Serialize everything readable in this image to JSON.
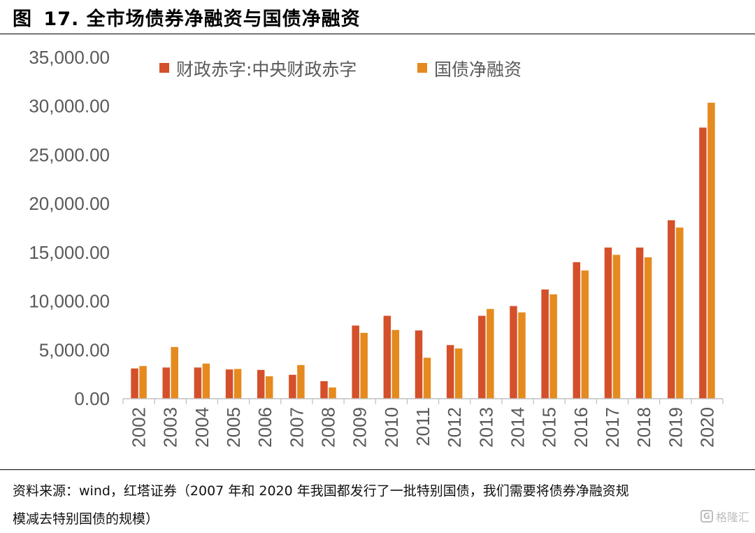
{
  "header": {
    "figure_label": "图",
    "figure_number": "17.",
    "title": "全市场债券净融资与国债净融资"
  },
  "footer": {
    "source_line1": "资料来源：wind，红塔证券（2007 年和 2020 年我国都发行了一批特别国债，我们需要将债券净融资规",
    "source_line2": "模减去特别国债的规模）"
  },
  "watermark": {
    "text": "格隆汇",
    "icon": "G"
  },
  "chart_data": {
    "type": "bar",
    "title": "",
    "xlabel": "",
    "ylabel": "",
    "ylim": [
      0,
      35000
    ],
    "yticks": [
      0,
      5000,
      10000,
      15000,
      20000,
      25000,
      30000,
      35000
    ],
    "ytick_labels": [
      "0.00",
      "5,000.00",
      "10,000.00",
      "15,000.00",
      "20,000.00",
      "25,000.00",
      "30,000.00",
      "35,000.00"
    ],
    "grid": false,
    "legend_position": "top",
    "categories": [
      "2002",
      "2003",
      "2004",
      "2005",
      "2006",
      "2007",
      "2008",
      "2009",
      "2010",
      "2011",
      "2012",
      "2013",
      "2014",
      "2015",
      "2016",
      "2017",
      "2018",
      "2019",
      "2020"
    ],
    "series": [
      {
        "name": "财政赤字:中央财政赤字",
        "color": "#d4502a",
        "values": [
          3100,
          3200,
          3200,
          3000,
          2950,
          2450,
          1800,
          7500,
          8500,
          7000,
          5500,
          8500,
          9500,
          11200,
          14000,
          15500,
          15500,
          18300,
          27800
        ]
      },
      {
        "name": "国债净融资",
        "color": "#e58a1f",
        "values": [
          3350,
          5300,
          3600,
          3050,
          2300,
          3450,
          1150,
          6750,
          7050,
          4200,
          5150,
          9200,
          8850,
          10700,
          13150,
          14750,
          14500,
          17550,
          30350
        ]
      }
    ]
  }
}
